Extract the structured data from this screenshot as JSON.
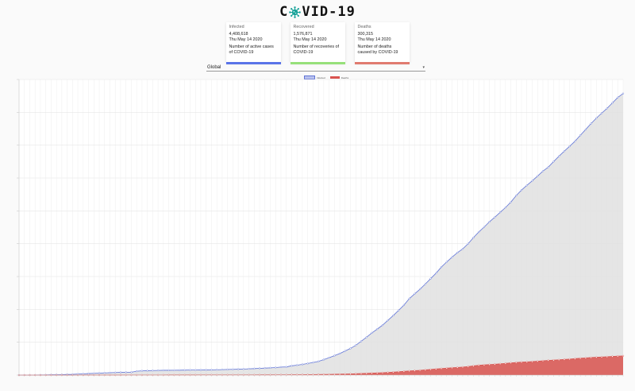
{
  "header": {
    "title_prefix": "C",
    "title_suffix": "VID-19",
    "logo_icon": "virus-icon"
  },
  "cards": [
    {
      "id": "infected",
      "title": "Infected",
      "value": "4,408,618",
      "date": "Thu May 14 2020",
      "description": "Number of active cases of COVID-19",
      "color": "#5a74e8"
    },
    {
      "id": "recovered",
      "title": "Recovered",
      "value": "1,576,871",
      "date": "Thu May 14 2020",
      "description": "Number of recoveries of COVID-19",
      "color": "#97e07a"
    },
    {
      "id": "deaths",
      "title": "Deaths",
      "value": "300,315",
      "date": "Thu May 14 2020",
      "description": "Number of deaths caused by COVID-19",
      "color": "#e07b70"
    }
  ],
  "country_select": {
    "value": "Global"
  },
  "chart_data": {
    "type": "area",
    "legend_position": "top-center",
    "grid": true,
    "x_start": "2020-01-22",
    "x_end": "2020-05-14",
    "series": [
      {
        "name": "Infected",
        "color": "#6074d6",
        "fill": "#e0e0e0",
        "values": [
          555,
          654,
          941,
          1434,
          2118,
          2927,
          5578,
          6166,
          8234,
          9927,
          12038,
          16787,
          19881,
          23892,
          27635,
          30794,
          34391,
          37120,
          40150,
          42762,
          44802,
          45221,
          60368,
          66885,
          69030,
          71224,
          73258,
          75136,
          75639,
          76197,
          76819,
          78572,
          78958,
          79561,
          80406,
          81388,
          82746,
          84112,
          86011,
          88369,
          90306,
          92840,
          95120,
          97886,
          101800,
          105847,
          109821,
          113590,
          118620,
          125875,
          128343,
          145193,
          156097,
          167449,
          181546,
          197168,
          214915,
          242713,
          272167,
          304528,
          336953,
          378235,
          418045,
          467653,
          529591,
          593291,
          660706,
          720117,
          782365,
          857487,
          932605,
          1013157,
          1095917,
          1197405,
          1272115,
          1345101,
          1426096,
          1511104,
          1595350,
          1691719,
          1771514,
          1846680,
          1917320,
          1976192,
          2056054,
          2152437,
          2240190,
          2317759,
          2401378,
          2472259,
          2549123,
          2624069,
          2708885,
          2811193,
          2897141,
          2971475,
          3041764,
          3116398,
          3193886,
          3256846,
          3343777,
          3427343,
          3506729,
          3583055,
          3662691,
          3755341,
          3845718,
          3938064,
          4024009,
          4101699,
          4177502,
          4261747,
          4347018,
          4408618
        ]
      },
      {
        "name": "Deaths",
        "color": "#d9534f",
        "fill": "#d9534f",
        "values": [
          17,
          18,
          26,
          42,
          56,
          82,
          131,
          133,
          171,
          213,
          259,
          362,
          426,
          492,
          564,
          634,
          719,
          806,
          906,
          1013,
          1113,
          1118,
          1371,
          1523,
          1666,
          1770,
          1868,
          2007,
          2122,
          2247,
          2251,
          2458,
          2469,
          2629,
          2708,
          2770,
          2814,
          2872,
          2941,
          2996,
          3085,
          3160,
          3254,
          3348,
          3460,
          3558,
          3802,
          3988,
          4262,
          4615,
          4720,
          5404,
          5819,
          6440,
          7126,
          7905,
          8733,
          9867,
          11299,
          12973,
          14651,
          16505,
          18625,
          21181,
          23970,
          27198,
          30652,
          33925,
          37582,
          42107,
          46809,
          52983,
          58787,
          64606,
          69374,
          74565,
          81865,
          88338,
          95455,
          102525,
          108502,
          114090,
          119482,
          125984,
          134177,
          143800,
          153822,
          159510,
          165044,
          169985,
          176583,
          183027,
          190858,
          197159,
          202846,
          206544,
          211167,
          217153,
          224172,
          230030,
          234074,
          239447,
          245186,
          250836,
          257239,
          263855,
          269567,
          274898,
          279311,
          283153,
          287250,
          291942,
          297197,
          300315
        ]
      }
    ]
  }
}
